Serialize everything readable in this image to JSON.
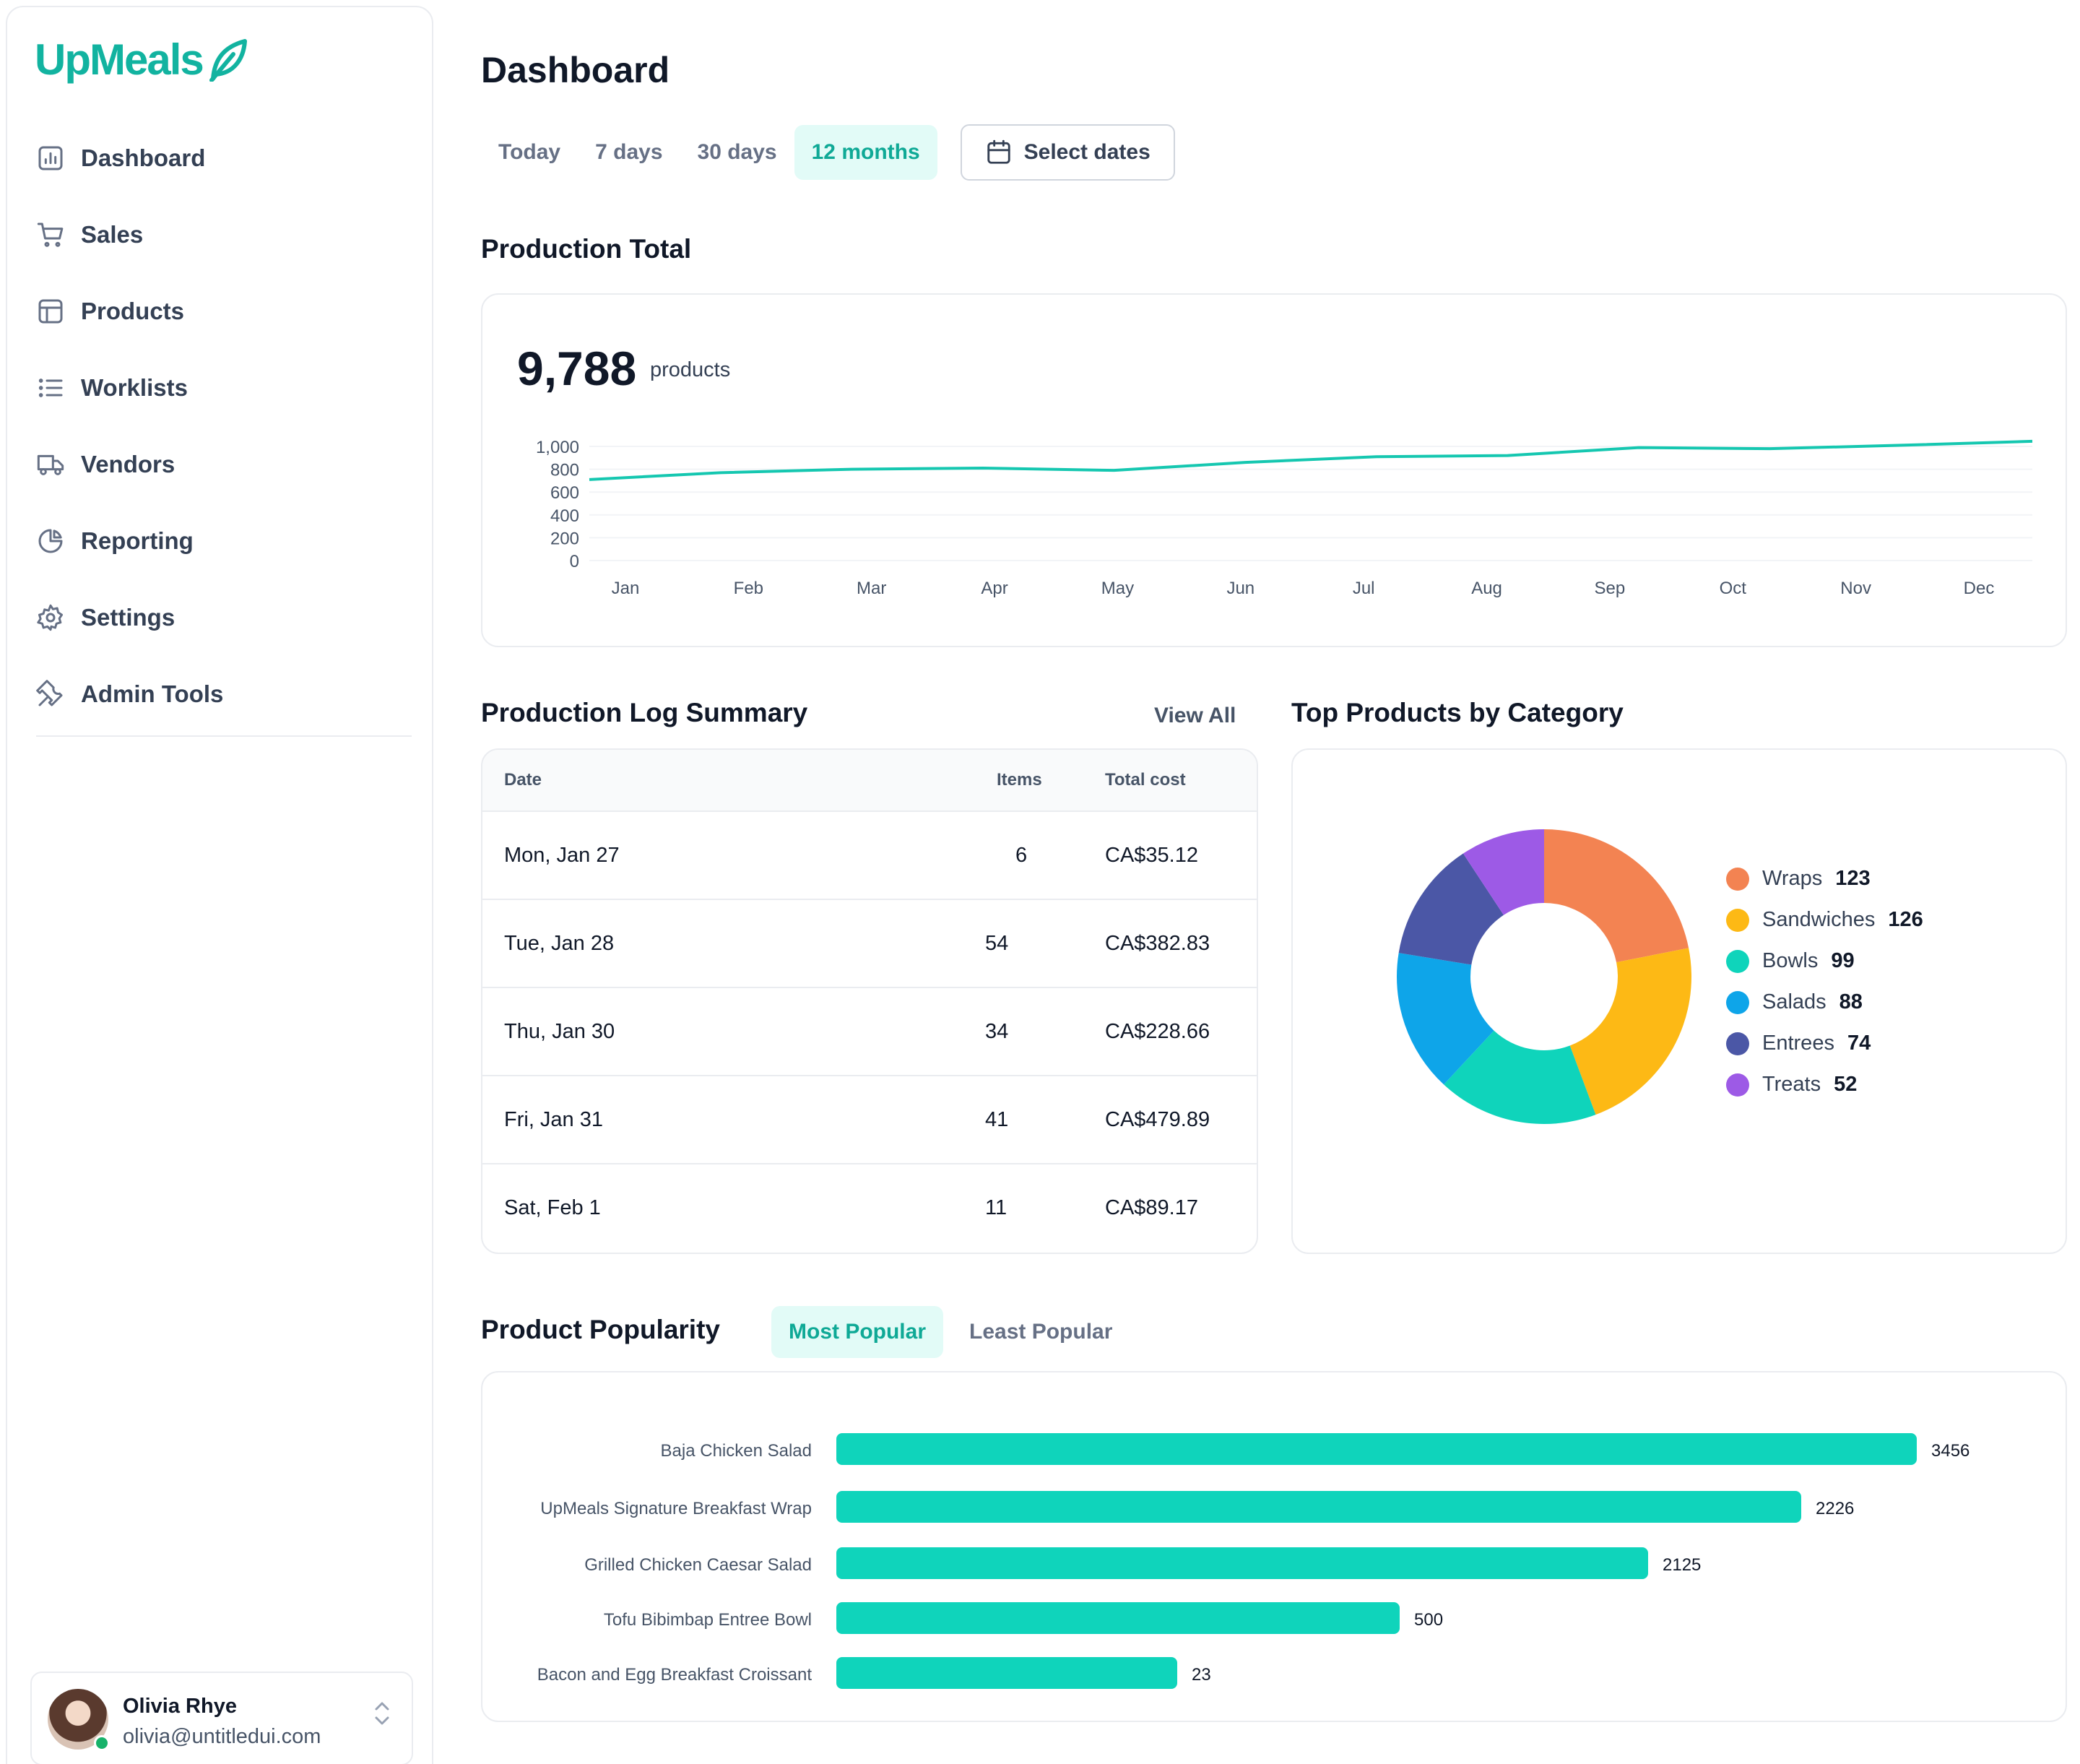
{
  "brand": {
    "name": "UpMeals",
    "accent": "#12b3a0"
  },
  "sidebar": {
    "items": [
      {
        "label": "Dashboard",
        "icon": "bar-chart-square-icon"
      },
      {
        "label": "Sales",
        "icon": "shopping-cart-icon"
      },
      {
        "label": "Products",
        "icon": "layout-icon"
      },
      {
        "label": "Worklists",
        "icon": "list-icon"
      },
      {
        "label": "Vendors",
        "icon": "truck-icon"
      },
      {
        "label": "Reporting",
        "icon": "pie-chart-icon"
      },
      {
        "label": "Settings",
        "icon": "gear-icon"
      },
      {
        "label": "Admin Tools",
        "icon": "tools-icon"
      }
    ],
    "user": {
      "name": "Olivia Rhye",
      "email": "olivia@untitledui.com"
    }
  },
  "header": {
    "title": "Dashboard",
    "ranges": [
      "Today",
      "7 days",
      "30 days",
      "12 months"
    ],
    "active_range": "12 months",
    "select_dates_label": "Select dates"
  },
  "production_total": {
    "title": "Production Total",
    "value": "9,788",
    "unit": "products"
  },
  "production_log": {
    "title": "Production Log Summary",
    "view_all_label": "View All",
    "columns": [
      "Date",
      "Items",
      "Total cost"
    ],
    "rows": [
      {
        "date": "Mon, Jan 27",
        "items": "6",
        "cost": "CA$35.12"
      },
      {
        "date": "Tue, Jan 28",
        "items": "54",
        "cost": "CA$382.83"
      },
      {
        "date": "Thu, Jan 30",
        "items": "34",
        "cost": "CA$228.66"
      },
      {
        "date": "Fri, Jan 31",
        "items": "41",
        "cost": "CA$479.89"
      },
      {
        "date": "Sat, Feb 1",
        "items": "11",
        "cost": "CA$89.17"
      }
    ]
  },
  "top_products": {
    "title": "Top Products by Category"
  },
  "popularity": {
    "title": "Product Popularity",
    "tabs": [
      "Most Popular",
      "Least Popular"
    ],
    "active_tab": "Most Popular"
  },
  "chart_data": [
    {
      "type": "line",
      "x": [
        "Jan",
        "Feb",
        "Mar",
        "Apr",
        "May",
        "Jun",
        "Jul",
        "Aug",
        "Sep",
        "Oct",
        "Nov",
        "Dec"
      ],
      "series": [
        {
          "values": [
            710,
            770,
            800,
            810,
            790,
            860,
            910,
            920,
            990,
            980,
            1010,
            1045
          ]
        }
      ],
      "yticks": [
        "1,000",
        "800",
        "600",
        "400",
        "200",
        "0"
      ],
      "ylim": [
        0,
        1000
      ],
      "grid": true,
      "color": "#15c7b0"
    },
    {
      "type": "pie",
      "donut": true,
      "labels": [
        "Wraps",
        "Sandwiches",
        "Bowls",
        "Salads",
        "Entrees",
        "Treats"
      ],
      "values": [
        123,
        126,
        99,
        88,
        74,
        52
      ],
      "colors": [
        "#f38352",
        "#fdb915",
        "#0fd4bb",
        "#0ea5e9",
        "#4b57a6",
        "#9d5ae6"
      ],
      "legend": "right"
    },
    {
      "type": "bar",
      "orientation": "horizontal",
      "categories": [
        "Baja Chicken Salad",
        "UpMeals Signature Breakfast Wrap",
        "Grilled Chicken Caesar Salad",
        "Tofu Bibimbap Entree Bowl",
        "Bacon and Egg Breakfast Croissant"
      ],
      "values": [
        3456,
        2226,
        2125,
        500,
        23
      ],
      "color": "#0fd4bb"
    }
  ]
}
